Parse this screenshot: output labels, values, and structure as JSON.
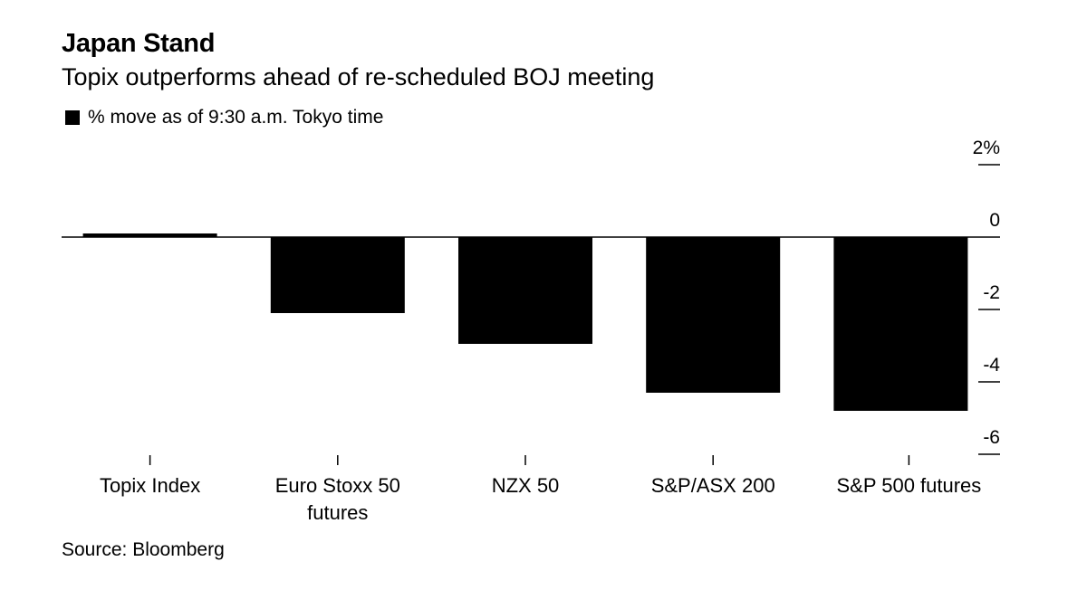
{
  "chart_data": {
    "type": "bar",
    "title": "Japan Stand",
    "subtitle": "Topix outperforms ahead of re-scheduled BOJ meeting",
    "legend": "% move as of 9:30 a.m. Tokyo time",
    "categories": [
      [
        "Topix Index"
      ],
      [
        "Euro Stoxx 50",
        "futures"
      ],
      [
        "NZX 50"
      ],
      [
        "S&P/ASX 200"
      ],
      [
        "S&P 500 futures"
      ]
    ],
    "values": [
      0.1,
      -2.1,
      -2.95,
      -4.3,
      -4.8
    ],
    "yticks": [
      {
        "value": 2,
        "label": "2%"
      },
      {
        "value": 0,
        "label": "0"
      },
      {
        "value": -2,
        "label": "-2"
      },
      {
        "value": -4,
        "label": "-4"
      },
      {
        "value": -6,
        "label": "-6"
      }
    ],
    "ylim": [
      -6,
      2
    ],
    "xlabel": "",
    "ylabel": "",
    "color": "#000000",
    "source": "Source: Bloomberg"
  }
}
